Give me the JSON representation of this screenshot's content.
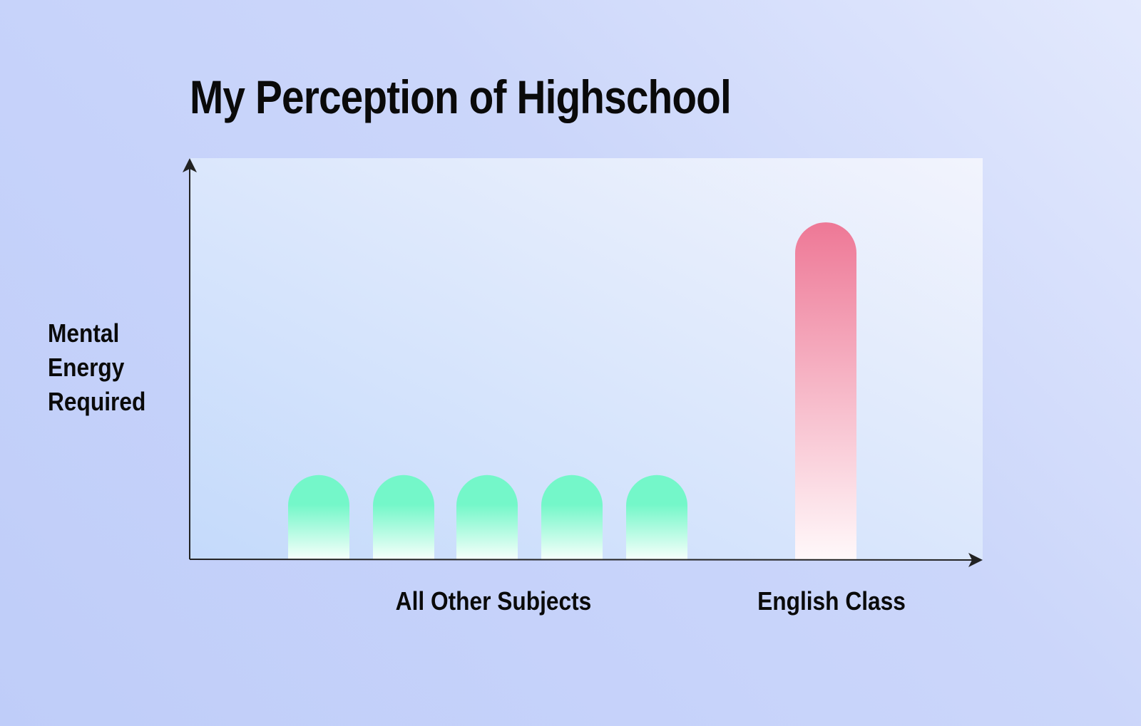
{
  "chart_data": {
    "type": "bar",
    "title": "My Perception of Highschool",
    "ylabel": "Mental\nEnergy\nRequired",
    "xlabel": "",
    "categories": [
      "All Other Subjects",
      "English Class"
    ],
    "bars": [
      {
        "group": "All Other Subjects",
        "value": 21
      },
      {
        "group": "All Other Subjects",
        "value": 21
      },
      {
        "group": "All Other Subjects",
        "value": 21
      },
      {
        "group": "All Other Subjects",
        "value": 21
      },
      {
        "group": "All Other Subjects",
        "value": 21
      },
      {
        "group": "English Class",
        "value": 84
      }
    ],
    "ylim": [
      0,
      100
    ],
    "grid": false,
    "legend": "none",
    "colors": {
      "other_top": "#74f7c9",
      "other_bottom": "#f6fffb",
      "english_top": "#ee7896",
      "english_bottom": "#fff8fa",
      "axis": "#222222",
      "plot_bg_start": "#c4dafb",
      "plot_bg_end": "#f2f4fd"
    }
  }
}
